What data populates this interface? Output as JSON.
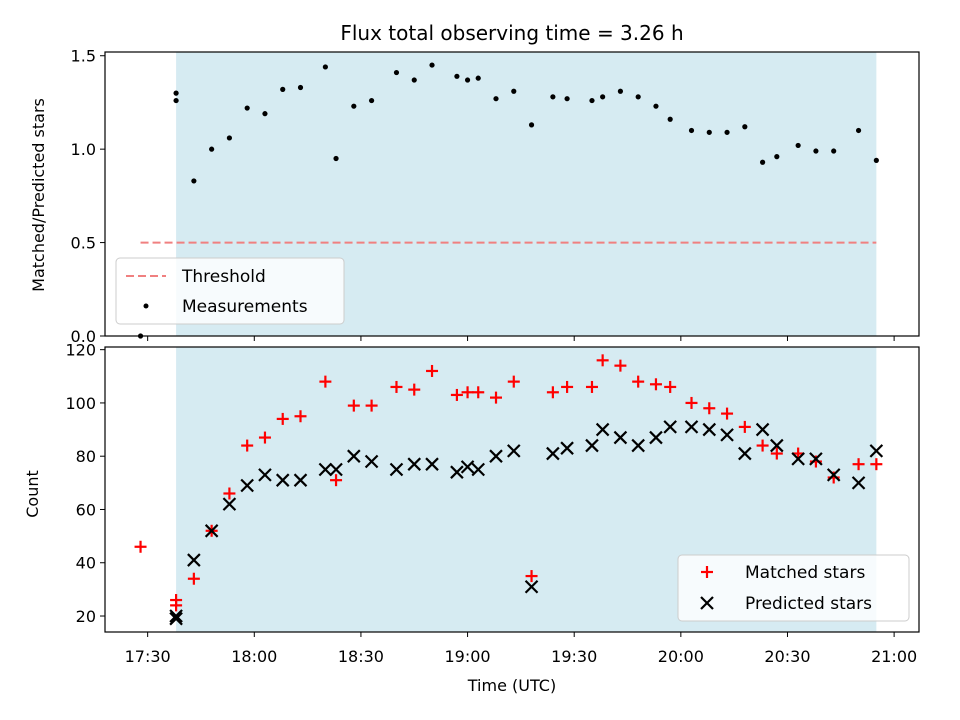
{
  "title": "Flux total observing time = 3.26 h",
  "chart_data": [
    {
      "type": "scatter",
      "panel": "top",
      "ylabel": "Matched/Predicted stars",
      "xlim": [
        "17:18",
        "21:07"
      ],
      "ylim": [
        0,
        1.52
      ],
      "yticks": [
        0.0,
        0.5,
        1.0,
        1.5
      ],
      "ytick_labels": [
        "0.0",
        "0.5",
        "1.0",
        "1.5"
      ],
      "shaded_span": [
        "17:38",
        "20:55"
      ],
      "shade_color": "#add8e6",
      "threshold": {
        "name": "Threshold",
        "value": 0.5,
        "x_from": "17:28",
        "x_to": "20:55",
        "color": "#f08080",
        "style": "dashed"
      },
      "legend_position": "lower left",
      "series": [
        {
          "name": "Measurements",
          "color": "#000000",
          "marker": "dot",
          "x": [
            "17:28",
            "17:38",
            "17:38",
            "17:43",
            "17:48",
            "17:53",
            "17:58",
            "18:03",
            "18:08",
            "18:13",
            "18:20",
            "18:23",
            "18:28",
            "18:33",
            "18:40",
            "18:45",
            "18:50",
            "18:57",
            "19:00",
            "19:03",
            "19:08",
            "19:13",
            "19:18",
            "19:24",
            "19:28",
            "19:35",
            "19:38",
            "19:43",
            "19:48",
            "19:53",
            "19:57",
            "20:03",
            "20:08",
            "20:13",
            "20:18",
            "20:23",
            "20:27",
            "20:33",
            "20:38",
            "20:43",
            "20:50",
            "20:55"
          ],
          "y": [
            0.0,
            1.26,
            1.3,
            0.83,
            1.0,
            1.06,
            1.22,
            1.19,
            1.32,
            1.33,
            1.44,
            0.95,
            1.23,
            1.26,
            1.41,
            1.37,
            1.45,
            1.39,
            1.37,
            1.38,
            1.27,
            1.31,
            1.13,
            1.28,
            1.27,
            1.26,
            1.28,
            1.31,
            1.28,
            1.23,
            1.16,
            1.1,
            1.09,
            1.09,
            1.12,
            0.93,
            0.96,
            1.02,
            0.99,
            0.99,
            1.1,
            0.94
          ]
        }
      ]
    },
    {
      "type": "scatter",
      "panel": "bottom",
      "xlabel": "Time (UTC)",
      "ylabel": "Count",
      "xlim": [
        "17:18",
        "21:07"
      ],
      "xticks": [
        "17:30",
        "18:00",
        "18:30",
        "19:00",
        "19:30",
        "20:00",
        "20:30",
        "21:00"
      ],
      "ylim": [
        14,
        121
      ],
      "yticks": [
        20,
        40,
        60,
        80,
        100,
        120
      ],
      "shaded_span": [
        "17:38",
        "20:55"
      ],
      "shade_color": "#add8e6",
      "legend_position": "lower right",
      "series": [
        {
          "name": "Matched stars",
          "color": "#ff0000",
          "marker": "plus",
          "x": [
            "17:28",
            "17:38",
            "17:38",
            "17:43",
            "17:48",
            "17:53",
            "17:58",
            "18:03",
            "18:08",
            "18:13",
            "18:20",
            "18:23",
            "18:28",
            "18:33",
            "18:40",
            "18:45",
            "18:50",
            "18:57",
            "19:00",
            "19:03",
            "19:08",
            "19:13",
            "19:18",
            "19:24",
            "19:28",
            "19:35",
            "19:38",
            "19:43",
            "19:48",
            "19:53",
            "19:57",
            "20:03",
            "20:08",
            "20:13",
            "20:18",
            "20:23",
            "20:27",
            "20:33",
            "20:38",
            "20:43",
            "20:50",
            "20:55"
          ],
          "y": [
            46,
            24,
            26,
            34,
            52,
            66,
            84,
            87,
            94,
            95,
            108,
            71,
            99,
            99,
            106,
            105,
            112,
            103,
            104,
            104,
            102,
            108,
            35,
            104,
            106,
            106,
            116,
            114,
            108,
            107,
            106,
            100,
            98,
            96,
            91,
            84,
            81,
            81,
            78,
            72,
            77,
            77
          ]
        },
        {
          "name": "Predicted stars",
          "color": "#000000",
          "marker": "x",
          "x": [
            "17:38",
            "17:38",
            "17:43",
            "17:48",
            "17:53",
            "17:58",
            "18:03",
            "18:08",
            "18:13",
            "18:20",
            "18:23",
            "18:28",
            "18:33",
            "18:40",
            "18:45",
            "18:50",
            "18:57",
            "19:00",
            "19:03",
            "19:08",
            "19:13",
            "19:18",
            "19:24",
            "19:28",
            "19:35",
            "19:38",
            "19:43",
            "19:48",
            "19:53",
            "19:57",
            "20:03",
            "20:08",
            "20:13",
            "20:18",
            "20:23",
            "20:27",
            "20:33",
            "20:38",
            "20:43",
            "20:50",
            "20:55"
          ],
          "y": [
            19,
            20,
            41,
            52,
            62,
            69,
            73,
            71,
            71,
            75,
            75,
            80,
            78,
            75,
            77,
            77,
            74,
            76,
            75,
            80,
            82,
            31,
            81,
            83,
            84,
            90,
            87,
            84,
            87,
            91,
            91,
            90,
            88,
            81,
            90,
            84,
            79,
            79,
            73,
            70,
            82
          ]
        }
      ]
    }
  ]
}
